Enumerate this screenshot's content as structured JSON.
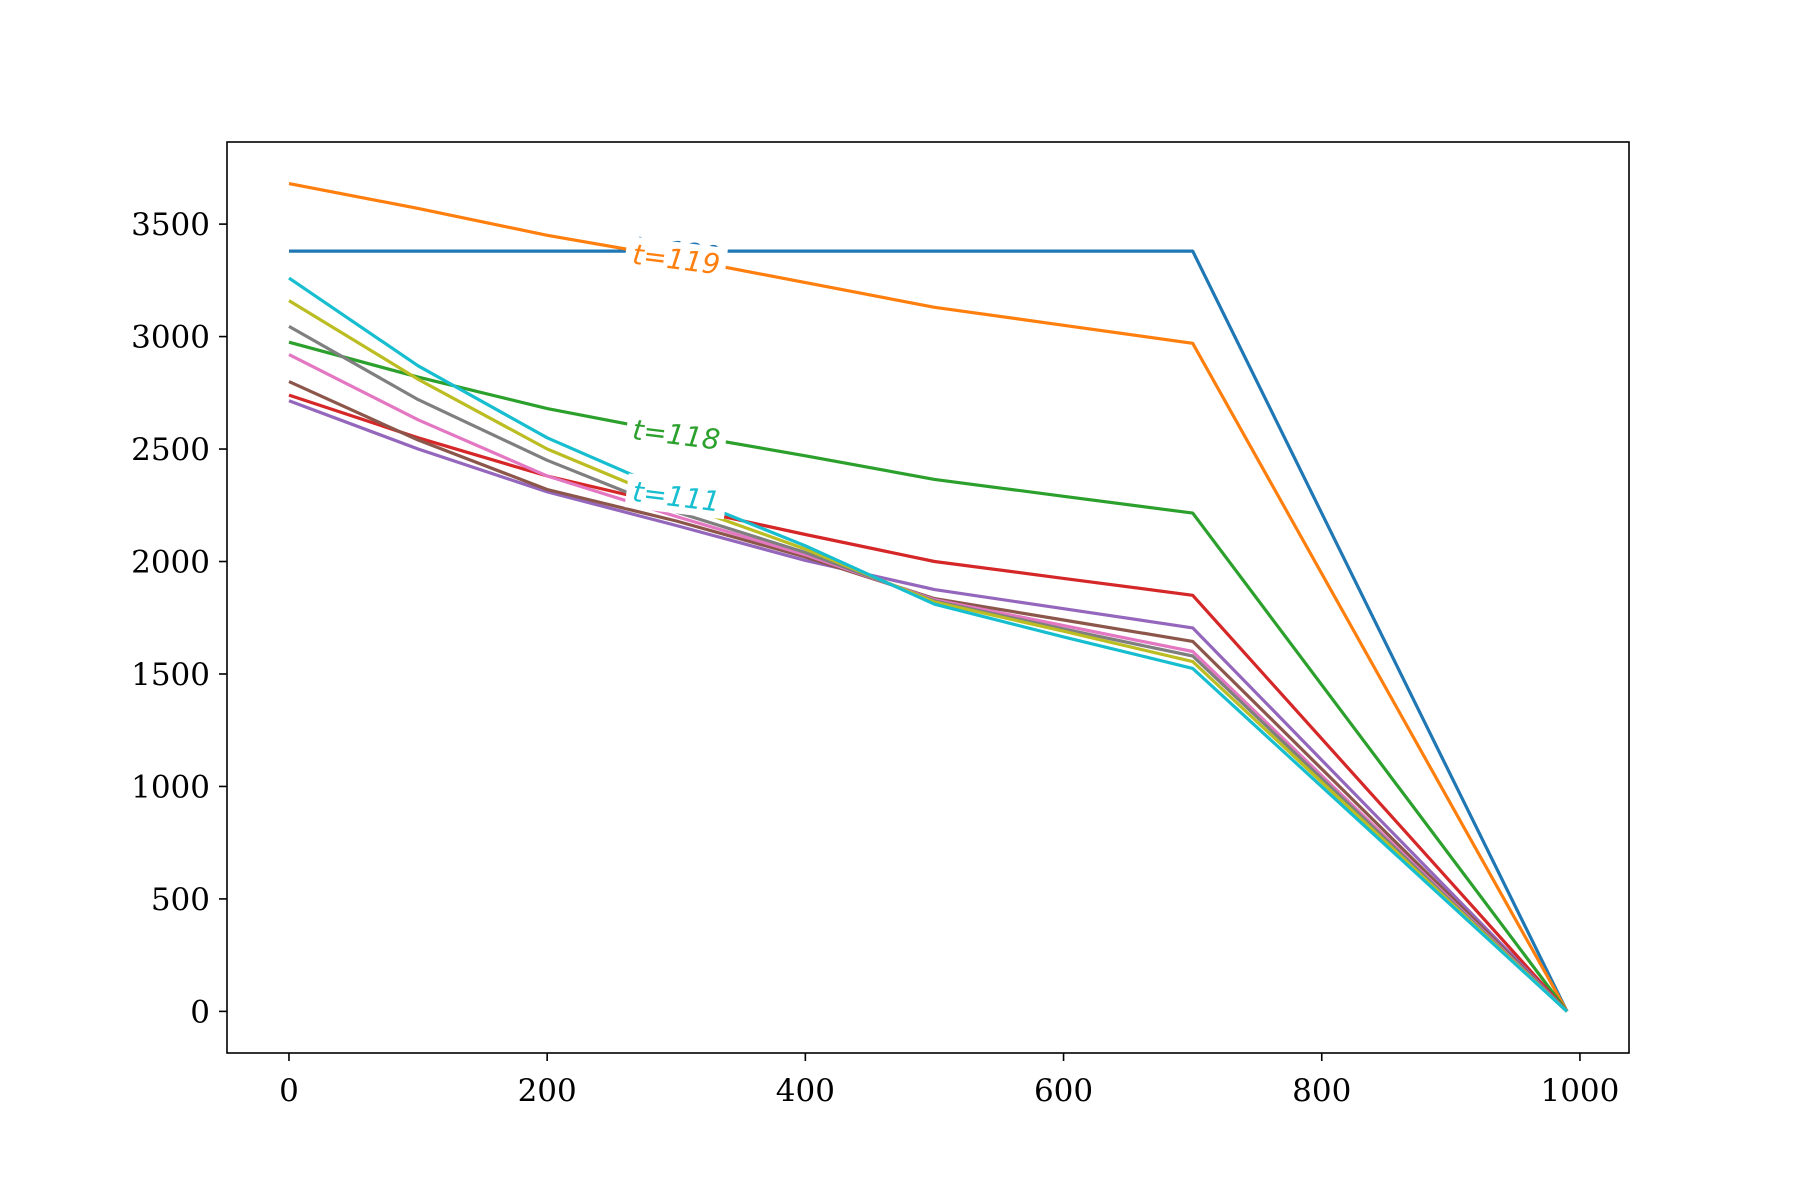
{
  "chart_data": {
    "type": "line",
    "title": "",
    "xlabel": "",
    "ylabel": "",
    "xlim": [
      -48,
      1038
    ],
    "ylim": [
      -185,
      3865
    ],
    "xticks": [
      0,
      200,
      400,
      600,
      800,
      1000
    ],
    "yticks": [
      0,
      500,
      1000,
      1500,
      2000,
      2500,
      3000,
      3500
    ],
    "x": [
      0,
      100,
      200,
      300,
      400,
      500,
      600,
      700,
      990
    ],
    "grid": false,
    "series": [
      {
        "name": "t=120",
        "color": "#1f77b4",
        "values": [
          3380,
          3380,
          3380,
          3380,
          3380,
          3380,
          3380,
          3380,
          0
        ]
      },
      {
        "name": "t=119",
        "color": "#ff7f0e",
        "values": [
          3680,
          3570,
          3450,
          3350,
          3240,
          3130,
          3050,
          2970,
          0
        ]
      },
      {
        "name": "t=118",
        "color": "#2ca02c",
        "values": [
          2975,
          2820,
          2680,
          2570,
          2470,
          2365,
          2290,
          2215,
          0
        ]
      },
      {
        "name": "",
        "color": "#d62728",
        "values": [
          2740,
          2550,
          2380,
          2245,
          2120,
          2000,
          1925,
          1850,
          0
        ]
      },
      {
        "name": "",
        "color": "#9467bd",
        "values": [
          2715,
          2500,
          2310,
          2160,
          2005,
          1875,
          1790,
          1705,
          0
        ]
      },
      {
        "name": "",
        "color": "#8c564b",
        "values": [
          2800,
          2540,
          2320,
          2180,
          2020,
          1835,
          1740,
          1645,
          0
        ]
      },
      {
        "name": "",
        "color": "#e377c2",
        "values": [
          2920,
          2630,
          2380,
          2200,
          2030,
          1830,
          1715,
          1600,
          0
        ]
      },
      {
        "name": "",
        "color": "#7f7f7f",
        "values": [
          3045,
          2720,
          2450,
          2220,
          2040,
          1825,
          1700,
          1580,
          0
        ]
      },
      {
        "name": "",
        "color": "#bcbd22",
        "values": [
          3160,
          2810,
          2500,
          2260,
          2055,
          1820,
          1690,
          1555,
          0
        ]
      },
      {
        "name": "t=111",
        "color": "#17becf",
        "values": [
          3260,
          2870,
          2550,
          2300,
          2070,
          1810,
          1665,
          1525,
          0
        ]
      }
    ],
    "inline_labels": [
      {
        "text": "t=120",
        "color": "#1f77b4",
        "x": 300,
        "y": 3380
      },
      {
        "text": "t=119",
        "color": "#ff7f0e",
        "x": 300,
        "y": 3345
      },
      {
        "text": "t=118",
        "color": "#2ca02c",
        "x": 300,
        "y": 2565
      },
      {
        "text": "t=111",
        "color": "#17becf",
        "x": 300,
        "y": 2290
      }
    ]
  }
}
